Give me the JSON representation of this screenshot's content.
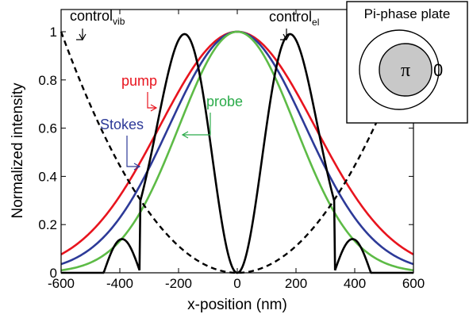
{
  "chart_data": {
    "type": "line",
    "title": "",
    "xlabel": "x-position (nm)",
    "ylabel": "Normalized intensity",
    "xlim": [
      -600,
      600
    ],
    "ylim": [
      0,
      1.05
    ],
    "xticks": [
      "-600",
      "-400",
      "-200",
      "0",
      "200",
      "400",
      "600"
    ],
    "yticks": [
      "0",
      "0.2",
      "0.4",
      "0.6",
      "0.8",
      "1"
    ],
    "grid": false,
    "series": [
      {
        "name": "pump",
        "color": "#e8141e",
        "style": "solid",
        "fwhm_nm": 623,
        "x": [
          -600,
          -400,
          -200,
          0,
          200,
          400,
          600
        ],
        "y": [
          0.06,
          0.29,
          0.76,
          1.0,
          0.76,
          0.29,
          0.06
        ]
      },
      {
        "name": "Stokes",
        "color": "#2d3a98",
        "style": "solid",
        "fwhm_nm": 548,
        "x": [
          -600,
          -400,
          -200,
          0,
          200,
          400,
          600
        ],
        "y": [
          0.025,
          0.2,
          0.7,
          1.0,
          0.7,
          0.2,
          0.025
        ]
      },
      {
        "name": "probe",
        "color": "#5dbb46",
        "style": "solid",
        "fwhm_nm": 468,
        "x": [
          -600,
          -400,
          -200,
          0,
          200,
          400,
          600
        ],
        "y": [
          0.005,
          0.1,
          0.6,
          1.0,
          0.6,
          0.1,
          0.005
        ]
      },
      {
        "name": "control_el",
        "color": "#000000",
        "style": "solid",
        "x": [
          -600,
          -450,
          -400,
          -330,
          -180,
          0,
          180,
          330,
          400,
          450,
          600
        ],
        "y": [
          0,
          0,
          0.14,
          0,
          1.0,
          0,
          1.0,
          0,
          0.14,
          0,
          0
        ]
      },
      {
        "name": "control_vib",
        "color": "#000000",
        "style": "dashed",
        "x": [
          -600,
          -400,
          -200,
          0,
          200,
          400,
          600
        ],
        "y": [
          1.0,
          0.44,
          0.11,
          0,
          0.11,
          0.44,
          1.0
        ]
      }
    ],
    "annotations": [
      {
        "label": "control",
        "sub": "vib",
        "color": "#000000"
      },
      {
        "label": "control",
        "sub": "el",
        "color": "#000000"
      },
      {
        "label": "pump",
        "sub": "",
        "color": "#e8141e"
      },
      {
        "label": "probe",
        "sub": "",
        "color": "#2bab4a"
      },
      {
        "label": "Stokes",
        "sub": "",
        "color": "#2d3a98"
      }
    ],
    "inset": {
      "title": "Pi-phase plate",
      "inner_label": "π",
      "outer_label": "0",
      "inner_fill": "#c8c8c8"
    }
  }
}
